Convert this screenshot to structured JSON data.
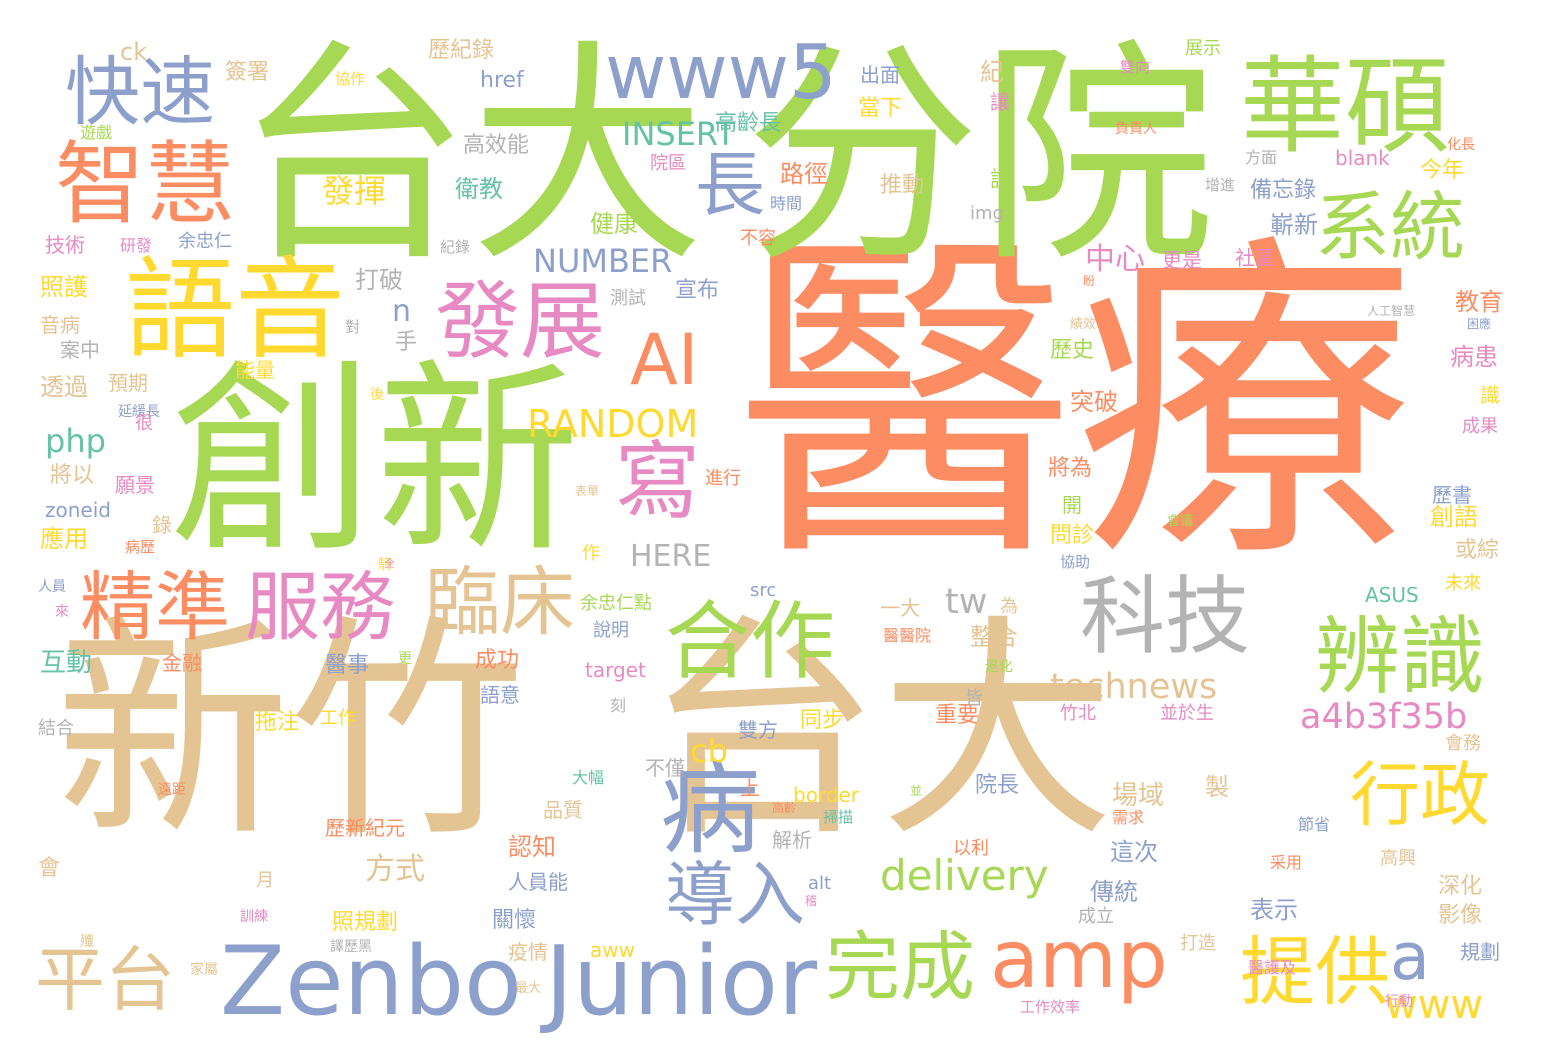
{
  "palette": {
    "green": "#a6d854",
    "orange": "#fc8d62",
    "tan": "#e5c494",
    "blue": "#8da0cb",
    "pink": "#e78ac3",
    "yellow": "#ffd92f",
    "teal": "#66c2a5",
    "gray": "#b3b3b3"
  },
  "words": [
    "醫療",
    "台大",
    "分院",
    "新竹",
    "台大",
    "創新",
    "華碩",
    "語音",
    "智慧",
    "www5",
    "快速",
    "長",
    "系統",
    "發展",
    "AI",
    "寫",
    "精準",
    "服務",
    "臨床",
    "合作",
    "科技",
    "辨識",
    "病",
    "行政",
    "提供",
    "Zenbo",
    "Junior",
    "amp",
    "完成",
    "導入",
    "平台",
    "a",
    "www",
    "delivery",
    "technews",
    "a4b3f35b",
    "RANDOM",
    "NUMBER",
    "INSERT",
    "HERE",
    "php",
    "cb",
    "tw",
    "n",
    "發揮",
    "衛教",
    "高效能",
    "高齡長",
    "健康",
    "路徑",
    "推動",
    "出面",
    "當下",
    "歷紀錄",
    "簽署",
    "展示",
    "雙向",
    "協作",
    "紀",
    "讓",
    "說",
    "blank",
    "今年",
    "方面",
    "備忘錄",
    "嶄新",
    "技術",
    "研發",
    "余忠仁",
    "不容",
    "img",
    "中心",
    "更是",
    "社區",
    "教育",
    "照護",
    "音病",
    "案中",
    "透過",
    "預期",
    "能量",
    "打破",
    "測試",
    "手",
    "宣布",
    "對",
    "歷史",
    "病患",
    "突破",
    "識",
    "成果",
    "將以",
    "願景",
    "zoneid",
    "應用",
    "互動",
    "金融",
    "醫事",
    "將為",
    "進行",
    "歷書",
    "創語",
    "或綜",
    "問診",
    "作",
    "開",
    "src",
    "ASUS",
    "為",
    "一大",
    "整合",
    "場域",
    "說明",
    "target",
    "成功",
    "語意",
    "拖注",
    "工作",
    "同步",
    "重要",
    "竹北",
    "並於生",
    "會務",
    "院長",
    "品質",
    "歷新紀元",
    "解析",
    "這次",
    "表示",
    "認知",
    "方式",
    "人員能",
    "傳統",
    "成立",
    "深化",
    "影像",
    "關懷",
    "疫情",
    "照規劃",
    "alt",
    "規劃",
    "打造",
    "aww",
    "月",
    "會",
    "結合",
    "刻",
    "不僅",
    "上",
    "雙方",
    "大幅",
    "border",
    "製",
    "高興",
    "采用",
    "節省",
    "以利",
    "需求",
    "工作效率",
    "行動",
    "家屬",
    "最大",
    "殲",
    "掃描",
    "醫護及",
    "未來",
    "遠距",
    "延緩長",
    "人員",
    "來",
    "很",
    "錄",
    "病歷",
    "騎",
    "協助",
    "余忠仁點",
    "醫醫院",
    "退化",
    "皆",
    "更",
    "並",
    "高齡",
    "稽",
    "訓練",
    "譯歷黑",
    "ck",
    "href",
    "遊戲",
    "院區",
    "時間",
    "紀錄",
    "負責人",
    "增進",
    "化長",
    "人工智慧",
    "困應",
    "績效",
    "盼",
    "後",
    "表單",
    "會議",
    "全"
  ]
}
